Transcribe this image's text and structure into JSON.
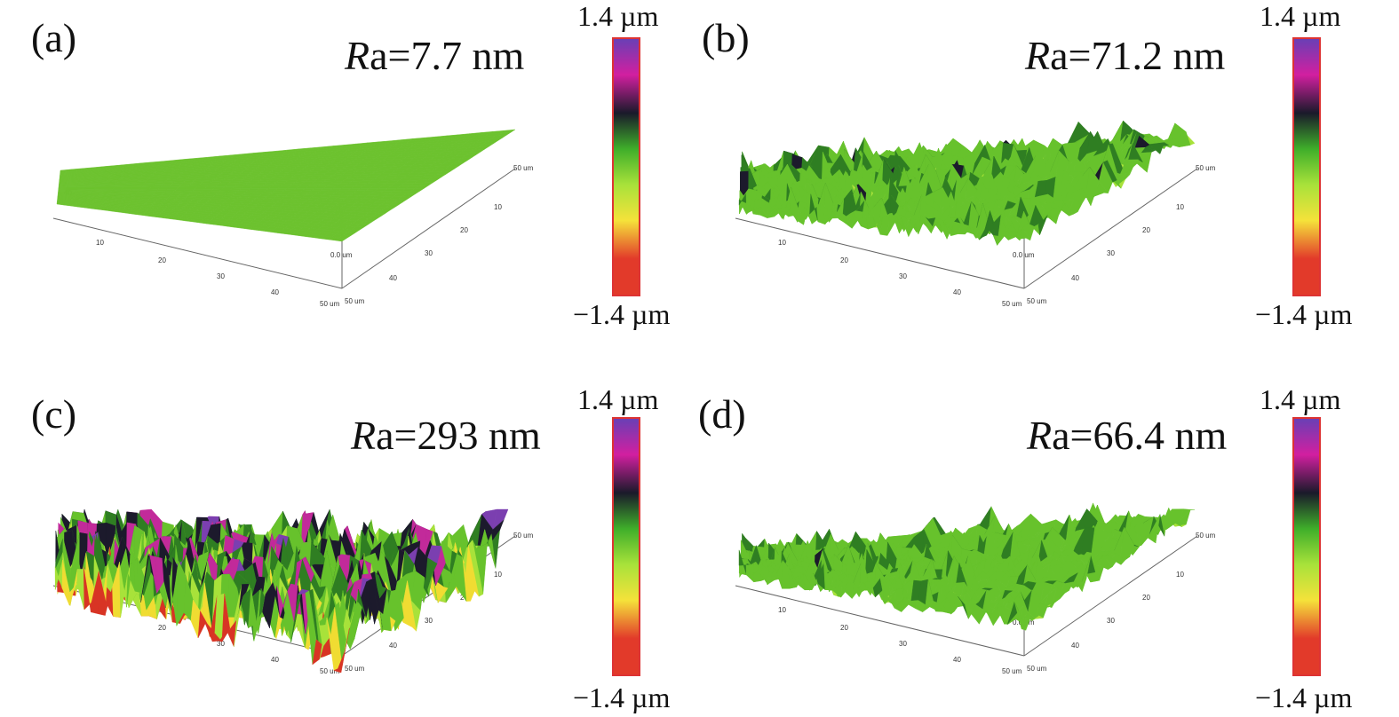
{
  "panels": [
    {
      "label": "(a)",
      "ra_prefix": "R",
      "ra_text": "a=7.7 nm",
      "cbar_max": "1.4 µm",
      "cbar_min": "−1.4 µm",
      "surface": {
        "roughness": 0.0,
        "palette": "flat-green"
      }
    },
    {
      "label": "(b)",
      "ra_prefix": "R",
      "ra_text": "a=71.2 nm",
      "cbar_max": "1.4 µm",
      "cbar_min": "−1.4 µm",
      "surface": {
        "roughness": 0.3,
        "palette": "green-spiky"
      }
    },
    {
      "label": "(c)",
      "ra_prefix": "R",
      "ra_text": "a=293 nm",
      "cbar_max": "1.4 µm",
      "cbar_min": "−1.4 µm",
      "surface": {
        "roughness": 1.0,
        "palette": "full"
      }
    },
    {
      "label": "(d)",
      "ra_prefix": "R",
      "ra_text": "a=66.4 nm",
      "cbar_max": "1.4 µm",
      "cbar_min": "−1.4 µm",
      "surface": {
        "roughness": 0.28,
        "palette": "green-spiky"
      }
    }
  ],
  "axis_ticks": {
    "left_axis": [
      "10",
      "20",
      "30",
      "40",
      "50 um"
    ],
    "right_axis": [
      "50 um",
      "40",
      "30",
      "20",
      "10",
      "50 um"
    ],
    "left_top": "40",
    "z_top": "1.4 um",
    "z_zero": "0.0 um"
  },
  "colormap": {
    "stops": [
      "#6a3fb5",
      "#d21fa0",
      "#1a1a2a",
      "#3fae2a",
      "#a8e23a",
      "#f5e23a",
      "#e23a2a",
      "#e23a2a"
    ]
  }
}
